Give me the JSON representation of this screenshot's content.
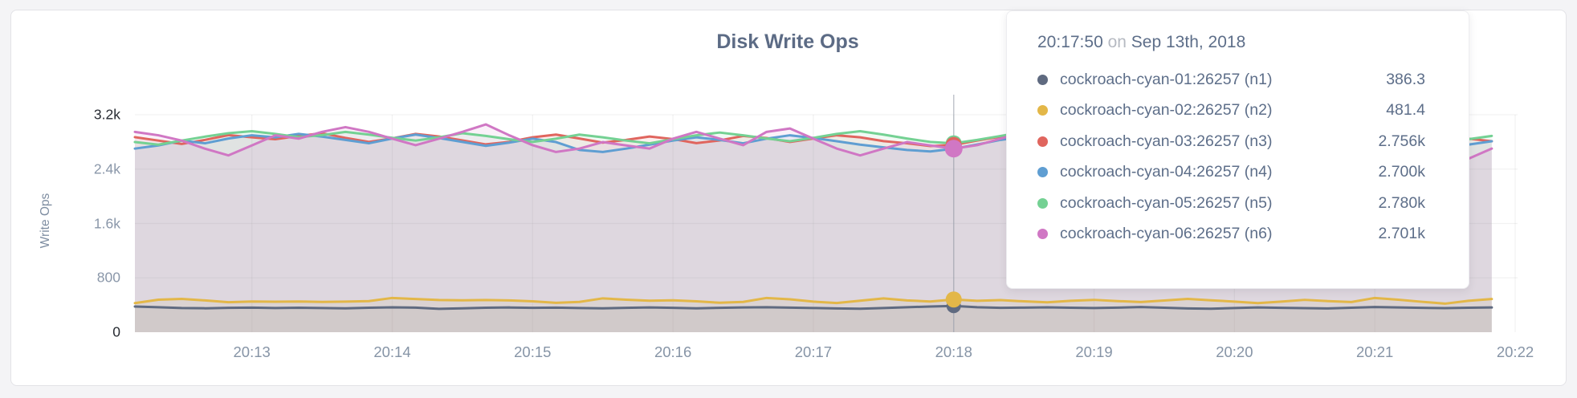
{
  "card": {},
  "chart_data": {
    "type": "line",
    "title": "Disk Write Ops",
    "ylabel": "Write Ops",
    "ylim": [
      0,
      3200
    ],
    "grid": true,
    "y_ticks": [
      "0",
      "800",
      "1.6k",
      "2.4k",
      "3.2k"
    ],
    "y_tick_values": [
      0,
      800,
      1600,
      2400,
      3200
    ],
    "x_ticks": [
      "20:13",
      "20:14",
      "20:15",
      "20:16",
      "20:17",
      "20:18",
      "20:19",
      "20:20",
      "20:21",
      "20:22"
    ],
    "points_per_minute": 6,
    "hover": {
      "index": 35,
      "time": "20:17:50"
    },
    "series": [
      {
        "id": "n1",
        "name": "cockroach-cyan-01:26257 (n1)",
        "color": "#5f6a80",
        "values": [
          378,
          368,
          355,
          352,
          358,
          362,
          356,
          360,
          355,
          352,
          360,
          366,
          362,
          344,
          352,
          360,
          364,
          358,
          362,
          356,
          352,
          358,
          364,
          358,
          352,
          358,
          364,
          368,
          362,
          356,
          350,
          346,
          356,
          368,
          378,
          386.3,
          368,
          358,
          362,
          366,
          360,
          355,
          362,
          370,
          360,
          350,
          346,
          355,
          364,
          358,
          354,
          350,
          360,
          370,
          364,
          358,
          354,
          360,
          364
        ]
      },
      {
        "id": "n2",
        "name": "cockroach-cyan-02:26257 (n2)",
        "color": "#e3b748",
        "values": [
          428,
          478,
          490,
          468,
          442,
          452,
          448,
          452,
          446,
          450,
          458,
          504,
          488,
          474,
          470,
          474,
          468,
          454,
          432,
          446,
          498,
          478,
          464,
          470,
          454,
          434,
          446,
          504,
          484,
          450,
          430,
          464,
          498,
          468,
          452,
          481.4,
          462,
          472,
          454,
          440,
          462,
          476,
          458,
          444,
          466,
          490,
          470,
          450,
          428,
          450,
          476,
          458,
          444,
          504,
          478,
          448,
          420,
          462,
          488
        ]
      },
      {
        "id": "n3",
        "name": "cockroach-cyan-03:26257 (n3)",
        "color": "#e0655e",
        "values": [
          2870,
          2820,
          2770,
          2830,
          2900,
          2868,
          2840,
          2888,
          2928,
          2860,
          2800,
          2852,
          2918,
          2880,
          2822,
          2764,
          2800,
          2868,
          2908,
          2850,
          2790,
          2830,
          2880,
          2842,
          2782,
          2822,
          2888,
          2858,
          2800,
          2850,
          2898,
          2868,
          2812,
          2780,
          2740,
          2756,
          2820,
          2878,
          2840,
          2790,
          2830,
          2870,
          2898,
          2850,
          2800,
          2762,
          2810,
          2860,
          2888,
          2840,
          2782,
          2820,
          2868,
          2830,
          2790,
          2752,
          2800,
          2848,
          2810
        ]
      },
      {
        "id": "n4",
        "name": "cockroach-cyan-04:26257 (n4)",
        "color": "#5f9ed2",
        "values": [
          2702,
          2748,
          2820,
          2780,
          2850,
          2898,
          2868,
          2918,
          2878,
          2830,
          2780,
          2850,
          2908,
          2858,
          2800,
          2742,
          2790,
          2848,
          2798,
          2682,
          2652,
          2702,
          2760,
          2820,
          2868,
          2830,
          2780,
          2848,
          2898,
          2858,
          2810,
          2760,
          2720,
          2682,
          2660,
          2700,
          2762,
          2830,
          2878,
          2840,
          2790,
          2848,
          2898,
          2868,
          2820,
          2770,
          2830,
          2878,
          2848,
          2800,
          2750,
          2702,
          2662,
          2720,
          2780,
          2840,
          2800,
          2760,
          2810
        ]
      },
      {
        "id": "n5",
        "name": "cockroach-cyan-05:26257 (n5)",
        "color": "#74d193",
        "values": [
          2798,
          2760,
          2820,
          2878,
          2928,
          2958,
          2918,
          2870,
          2900,
          2948,
          2908,
          2860,
          2820,
          2868,
          2928,
          2888,
          2840,
          2800,
          2848,
          2908,
          2868,
          2820,
          2780,
          2840,
          2898,
          2938,
          2898,
          2850,
          2810,
          2860,
          2918,
          2958,
          2908,
          2850,
          2800,
          2780,
          2830,
          2888,
          2948,
          2998,
          2948,
          2898,
          2850,
          2888,
          2938,
          2898,
          2850,
          2800,
          2848,
          2908,
          2868,
          2820,
          2772,
          2830,
          2888,
          2928,
          2878,
          2840,
          2888
        ]
      },
      {
        "id": "n6",
        "name": "cockroach-cyan-06:26257 (n6)",
        "color": "#d077c4",
        "values": [
          2948,
          2898,
          2820,
          2700,
          2602,
          2748,
          2898,
          2848,
          2948,
          3018,
          2948,
          2848,
          2752,
          2848,
          2948,
          3058,
          2898,
          2752,
          2652,
          2702,
          2798,
          2748,
          2702,
          2848,
          2948,
          2848,
          2752,
          2948,
          2998,
          2848,
          2702,
          2602,
          2702,
          2798,
          2748,
          2701,
          2752,
          2848,
          2948,
          3038,
          2898,
          2752,
          2652,
          2752,
          2898,
          3048,
          2948,
          2798,
          2702,
          2602,
          2552,
          2652,
          2602,
          2702,
          2848,
          2748,
          2652,
          2552,
          2702
        ]
      }
    ]
  },
  "tooltip": {
    "time": "20:17:50",
    "conjunction": "on",
    "date": "Sep 13th, 2018",
    "rows": [
      {
        "label": "cockroach-cyan-01:26257 (n1)",
        "value": "386.3",
        "color": "#5f6a80"
      },
      {
        "label": "cockroach-cyan-02:26257 (n2)",
        "value": "481.4",
        "color": "#e3b748"
      },
      {
        "label": "cockroach-cyan-03:26257 (n3)",
        "value": "2.756k",
        "color": "#e0655e"
      },
      {
        "label": "cockroach-cyan-04:26257 (n4)",
        "value": "2.700k",
        "color": "#5f9ed2"
      },
      {
        "label": "cockroach-cyan-05:26257 (n5)",
        "value": "2.780k",
        "color": "#74d193"
      },
      {
        "label": "cockroach-cyan-06:26257 (n6)",
        "value": "2.701k",
        "color": "#d077c4"
      }
    ]
  }
}
